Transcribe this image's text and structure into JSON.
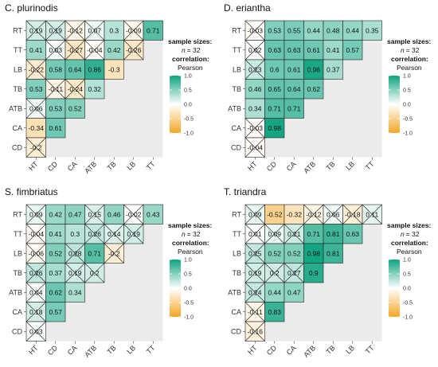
{
  "legend": {
    "sample_sizes_label": "sample sizes:",
    "n_label": "n",
    "n_value": "= 32",
    "correlation_label": "correlation:",
    "method": "Pearson",
    "ticks": [
      "1.0",
      "0.5",
      "0.0",
      "-0.5",
      "-1.0"
    ],
    "colors": {
      "positive": "#0fa37f",
      "zero": "#ffffff",
      "negative": "#f5a623"
    }
  },
  "chart_data": [
    {
      "type": "heatmap",
      "title": "C. plurinodis",
      "x_labels": [
        "HT",
        "CD",
        "CA",
        "ATB",
        "TB",
        "LB",
        "TT"
      ],
      "y_labels": [
        "RT",
        "TT",
        "LB",
        "TB",
        "ATB",
        "CA",
        "CD"
      ],
      "rows": [
        [
          0.19,
          0.19,
          -0.12,
          0.07,
          0.3,
          -0.09,
          0.71
        ],
        [
          0.41,
          0.03,
          -0.27,
          -0.04,
          0.42,
          -0.26
        ],
        [
          -0.22,
          0.58,
          0.64,
          0.86,
          -0.3
        ],
        [
          0.53,
          -0.11,
          -0.24,
          0.32
        ],
        [
          0.06,
          0.53,
          0.52
        ],
        [
          -0.34,
          0.61
        ],
        [
          -0.2
        ]
      ]
    },
    {
      "type": "heatmap",
      "title": "D. eriantha",
      "x_labels": [
        "HT",
        "CD",
        "CA",
        "ATB",
        "TB",
        "LB",
        "TT"
      ],
      "y_labels": [
        "RT",
        "TT",
        "LB",
        "TB",
        "ATB",
        "CA",
        "CD"
      ],
      "rows": [
        [
          -0.03,
          0.53,
          0.55,
          0.44,
          0.48,
          0.44,
          0.35
        ],
        [
          0.02,
          0.63,
          0.63,
          0.61,
          0.41,
          0.57
        ],
        [
          0.23,
          0.6,
          0.61,
          0.96,
          0.37
        ],
        [
          0.46,
          0.65,
          0.64,
          0.62
        ],
        [
          0.34,
          0.71,
          0.71
        ],
        [
          -0.03,
          0.98
        ],
        [
          -0.04
        ]
      ]
    },
    {
      "type": "heatmap",
      "title": "S. fimbriatus",
      "x_labels": [
        "HT",
        "CD",
        "CA",
        "ATB",
        "TB",
        "LB",
        "TT"
      ],
      "y_labels": [
        "RT",
        "TT",
        "LB",
        "TB",
        "ATB",
        "CA",
        "CD"
      ],
      "rows": [
        [
          0.09,
          0.42,
          0.47,
          0.15,
          0.46,
          -0.02,
          0.43
        ],
        [
          -0.04,
          0.41,
          0.3,
          0.26,
          0.14,
          0.19
        ],
        [
          -0.06,
          0.52,
          0.28,
          0.71,
          -0.2
        ],
        [
          0.26,
          0.37,
          0.19,
          0.2
        ],
        [
          0.04,
          0.62,
          0.34
        ],
        [
          0.18,
          0.57
        ],
        [
          0.03
        ]
      ]
    },
    {
      "type": "heatmap",
      "title": "T. triandra",
      "x_labels": [
        "HT",
        "CD",
        "CA",
        "ATB",
        "TB",
        "LB",
        "TT"
      ],
      "y_labels": [
        "RT",
        "TT",
        "LB",
        "TB",
        "ATB",
        "CA",
        "CD"
      ],
      "rows": [
        [
          0.09,
          -0.52,
          -0.32,
          -0.12,
          0.06,
          -0.18,
          0.11
        ],
        [
          0.01,
          0.09,
          0.21,
          0.71,
          0.81,
          0.63
        ],
        [
          0.25,
          0.52,
          0.52,
          0.98,
          0.81
        ],
        [
          0.19,
          0.2,
          0.27,
          0.9
        ],
        [
          0.24,
          0.44,
          0.47
        ],
        [
          -0.11,
          0.83
        ],
        [
          -0.16
        ]
      ]
    }
  ]
}
